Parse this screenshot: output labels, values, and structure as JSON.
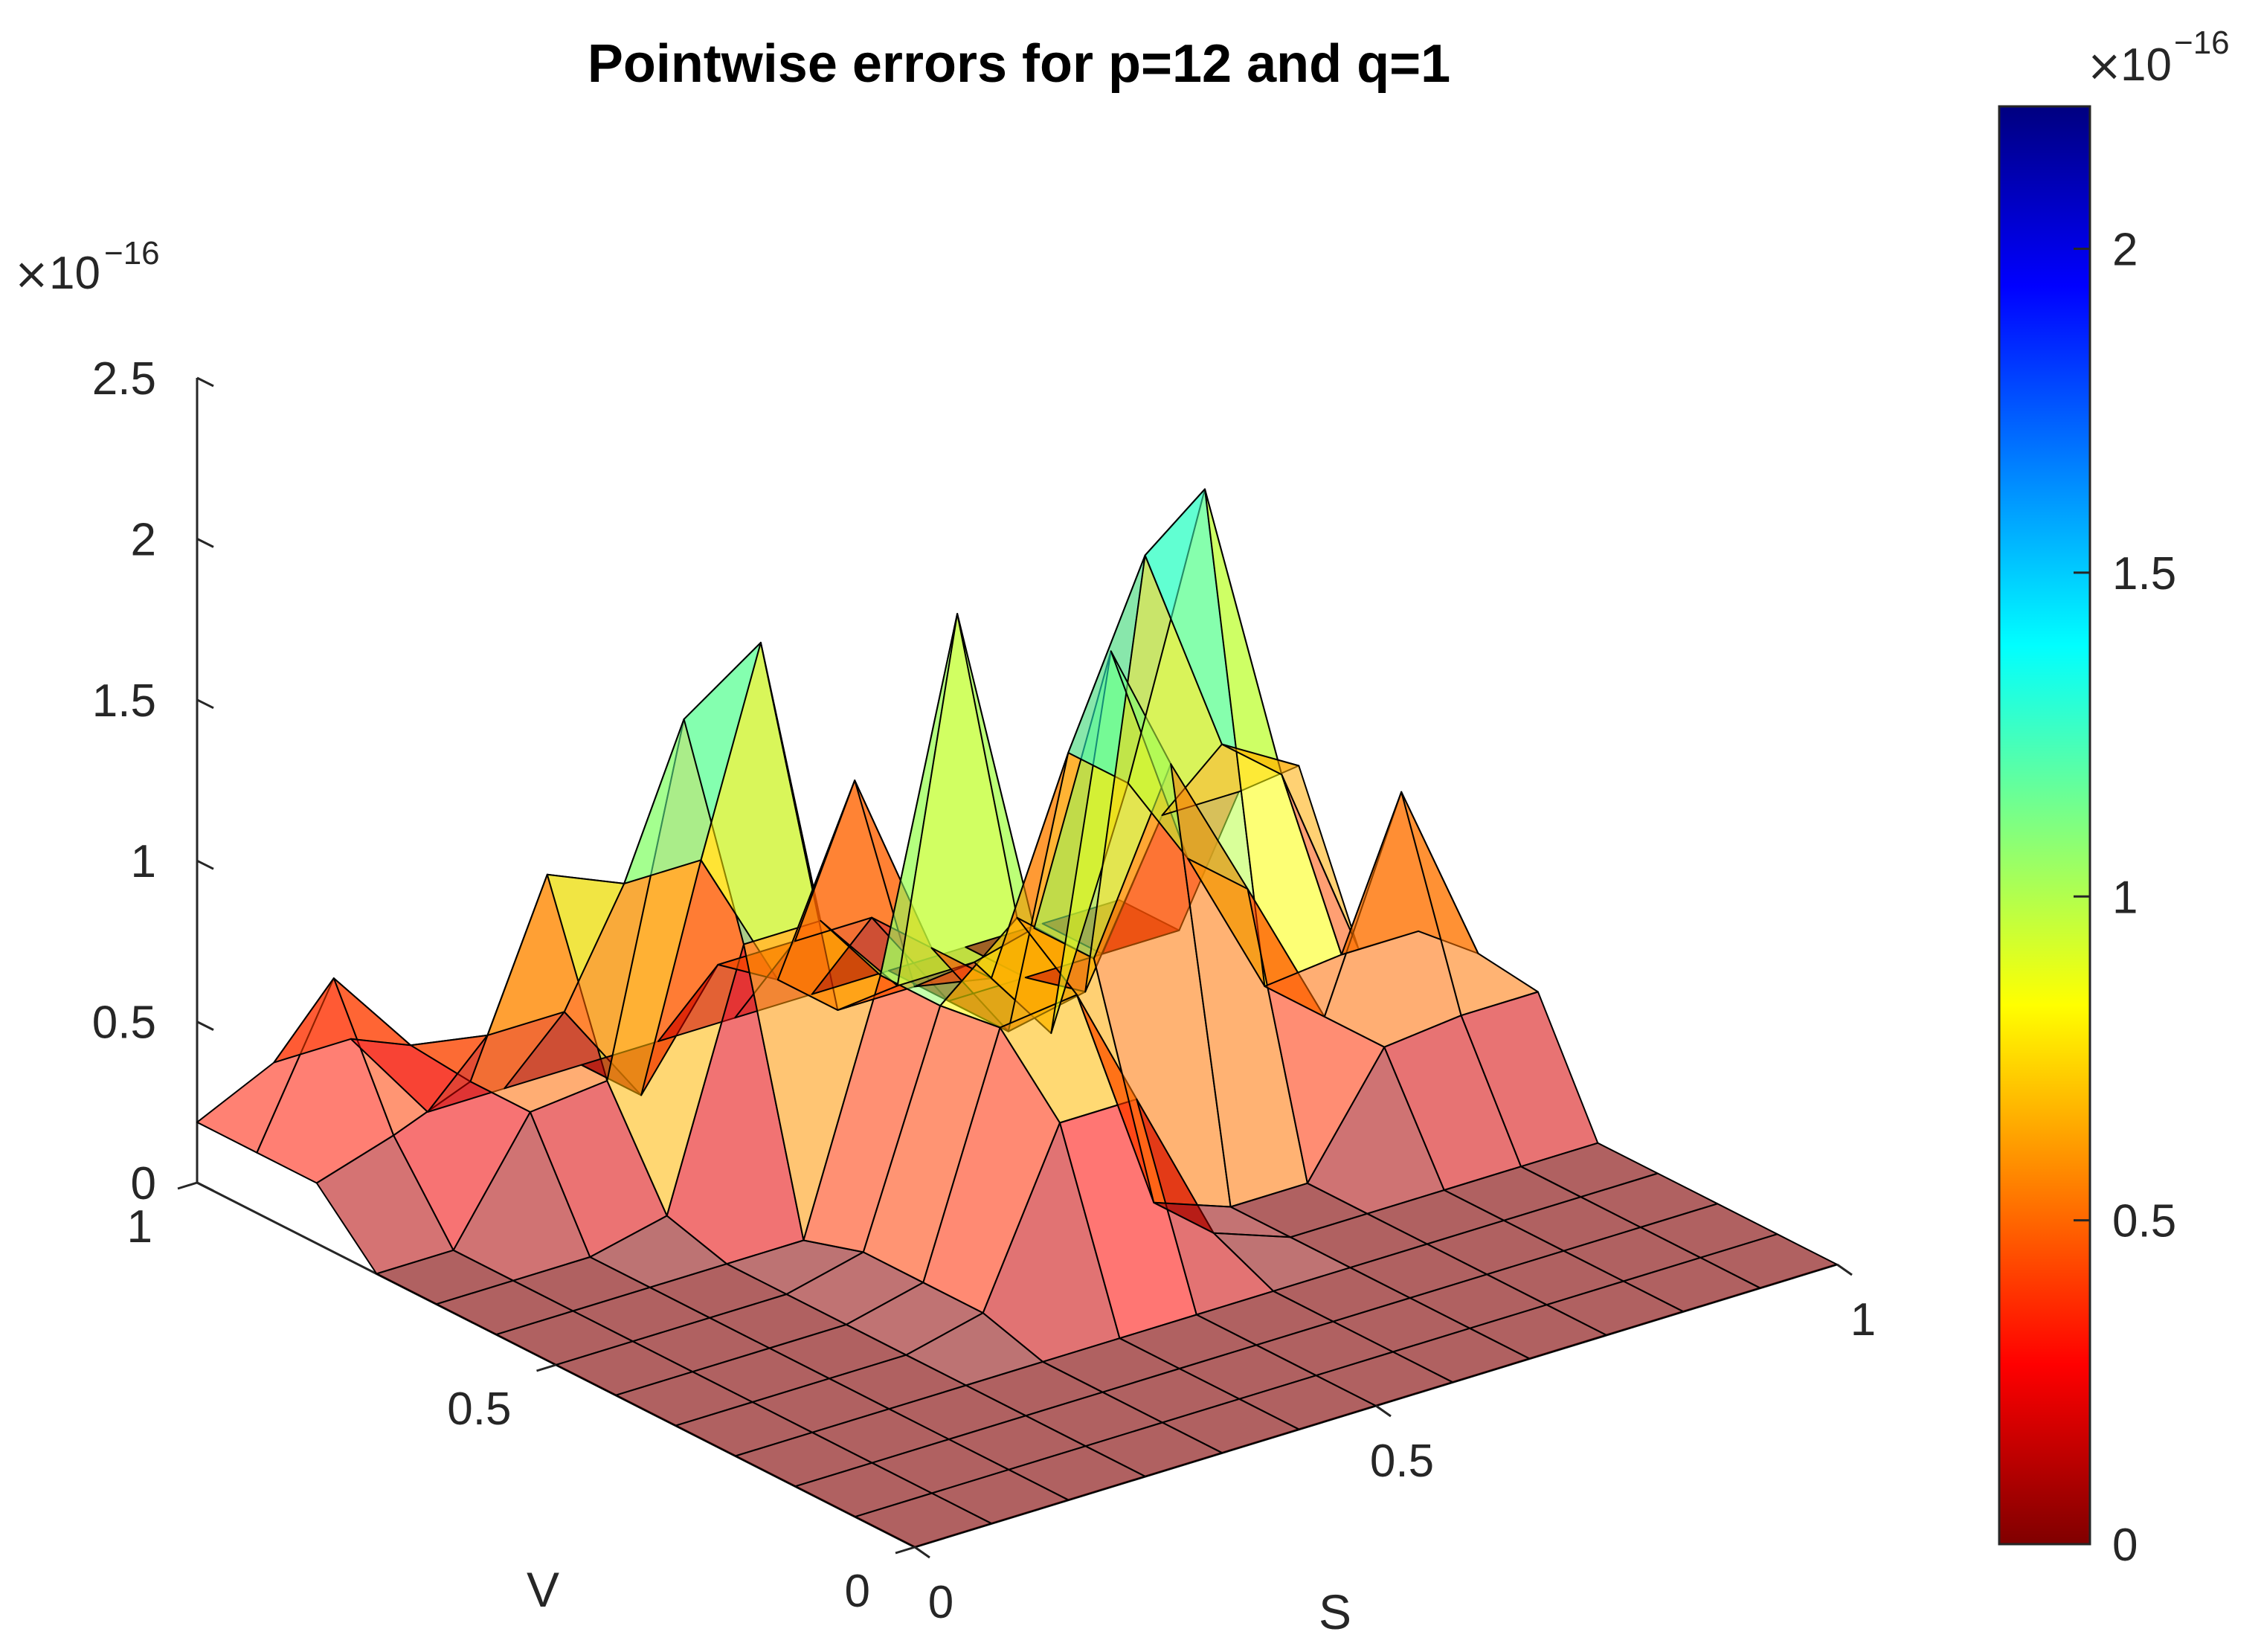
{
  "chart_data": [
    {
      "type": "surface",
      "title": "Pointwise errors for p=12 and q=1",
      "xlabel": "S",
      "ylabel": "V",
      "zlabel": "",
      "x_ticks": [
        "0",
        "0.5",
        "1"
      ],
      "y_ticks": [
        "0",
        "0.5",
        "1"
      ],
      "z_ticks": [
        "0",
        "0.5",
        "1",
        "1.5",
        "2",
        "2.5"
      ],
      "z_exponent_base": "10",
      "z_exponent": "−16",
      "xlim": [
        0,
        1
      ],
      "ylim": [
        0,
        1
      ],
      "zlim": [
        0,
        2.5
      ],
      "z_scale": 1e-16,
      "grid_size": 13,
      "colormap": "jet-reversed",
      "surface_alpha": 0.55,
      "peaks": [
        {
          "x": 0.38,
          "y": 0.75,
          "z": 2.2
        },
        {
          "x": 0.5,
          "y": 0.57,
          "z": 2.0
        },
        {
          "x": 0.67,
          "y": 0.55,
          "z": 2.05
        },
        {
          "x": 0.83,
          "y": 0.7,
          "z": 2.4
        },
        {
          "x": 0.58,
          "y": 0.83,
          "z": 0.95
        },
        {
          "x": 0.92,
          "y": 0.5,
          "z": 1.0
        },
        {
          "x": 0.96,
          "y": 0.77,
          "z": 1.0
        },
        {
          "x": 0.25,
          "y": 0.83,
          "z": 0.95
        },
        {
          "x": 0.1,
          "y": 0.92,
          "z": 0.75
        },
        {
          "x": 0.46,
          "y": 0.4,
          "z": 1.15
        }
      ]
    },
    {
      "type": "colorbar",
      "ticks": [
        "0",
        "0.5",
        "1",
        "1.5",
        "2"
      ],
      "tick_values": [
        0,
        0.5,
        1,
        1.5,
        2
      ],
      "range": [
        0,
        2.22
      ],
      "exponent_base": "10",
      "exponent": "−16",
      "colors": [
        "#800000",
        "#ff0000",
        "#ff8000",
        "#ffff00",
        "#80ff80",
        "#00ffff",
        "#0080ff",
        "#0000ff",
        "#000080"
      ]
    }
  ]
}
